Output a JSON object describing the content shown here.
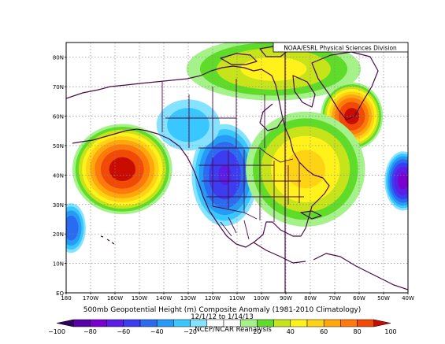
{
  "credit": "NOAA/ESRL Physical Sciences Division",
  "title": "500mb Geopotential Height (m) Composite Anomaly (1981-2010 Climatology)",
  "date_range": "12/1/12 to 1/14/13",
  "source": "NCEP/NCAR Reanalysis",
  "map": {
    "lat_labels": [
      "EQ",
      "10N",
      "20N",
      "30N",
      "40N",
      "50N",
      "60N",
      "70N",
      "80N"
    ],
    "lon_labels": [
      "180",
      "170W",
      "160W",
      "150W",
      "140W",
      "130W",
      "120W",
      "110W",
      "100W",
      "90W",
      "80W",
      "70W",
      "60W",
      "50W",
      "40W"
    ]
  },
  "anomaly_field": [
    {
      "name": "central-pacific-ridge",
      "lon": -157,
      "lat": 42,
      "value": 96,
      "rx": 16,
      "ry": 12
    },
    {
      "name": "western-us-trough",
      "lon": -115,
      "lat": 40,
      "value": -62,
      "rx": 11,
      "ry": 14
    },
    {
      "name": "alaska-gulf-trough",
      "lon": -130,
      "lat": 57,
      "value": -28,
      "rx": 12,
      "ry": 8
    },
    {
      "name": "canadian-arctic-ridge",
      "lon": -95,
      "lat": 76,
      "value": 45,
      "rx": 30,
      "ry": 9
    },
    {
      "name": "greenland-labrador-ridge",
      "lon": -63,
      "lat": 60,
      "value": 95,
      "rx": 10,
      "ry": 9
    },
    {
      "name": "eastern-na-ridge",
      "lon": -82,
      "lat": 42,
      "value": 55,
      "rx": 20,
      "ry": 16
    },
    {
      "name": "north-atlantic-trough",
      "lon": -42,
      "lat": 38,
      "value": -75,
      "rx": 6,
      "ry": 8
    },
    {
      "name": "subtropical-pacific-trough",
      "lon": -178,
      "lat": 22,
      "value": -50,
      "rx": 5,
      "ry": 7
    }
  ],
  "colorbar": {
    "levels": [
      -100,
      -90,
      -80,
      -70,
      -60,
      -50,
      -40,
      -30,
      -20,
      -10,
      0,
      10,
      20,
      30,
      40,
      50,
      60,
      70,
      80,
      90,
      100
    ],
    "colors": [
      "#300061",
      "#5800a8",
      "#7a00cf",
      "#5a1ee6",
      "#3c3cf0",
      "#2b6bf2",
      "#259bf5",
      "#38c8ff",
      "#86e3ff",
      "#ffffff",
      "#ffffff",
      "#a5f28a",
      "#5fdc2a",
      "#c7e41a",
      "#fff21a",
      "#ffd315",
      "#ffa80e",
      "#ff7a0a",
      "#f04a06",
      "#c80c00"
    ],
    "tick_labels": [
      "−100",
      "−80",
      "−60",
      "−40",
      "−20",
      "20",
      "40",
      "60",
      "80",
      "100"
    ],
    "tick_values": [
      -100,
      -80,
      -60,
      -40,
      -20,
      20,
      40,
      60,
      80,
      100
    ]
  }
}
